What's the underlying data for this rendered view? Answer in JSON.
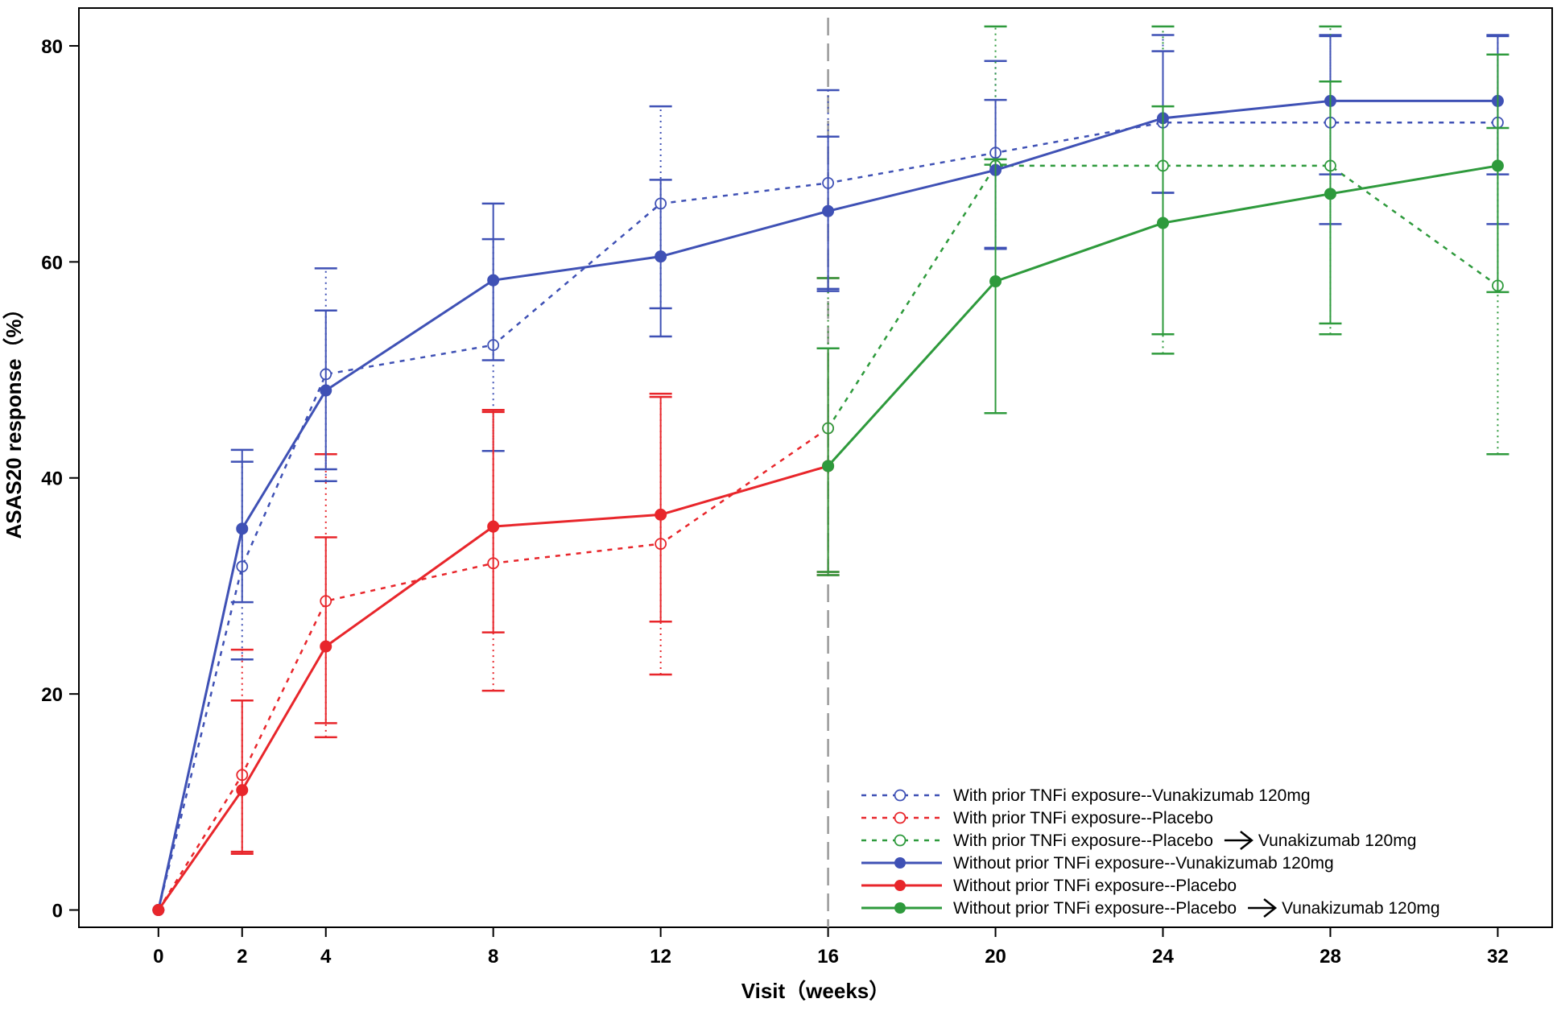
{
  "chart_data": {
    "type": "line",
    "xlabel": "Visit（weeks）",
    "ylabel": "ASAS20 response（%）",
    "xlim": [
      -1.9,
      33.3
    ],
    "ylim": [
      -1.6,
      83.5
    ],
    "x_ticks": [
      0,
      2,
      4,
      8,
      12,
      16,
      20,
      24,
      28,
      32
    ],
    "y_ticks": [
      0,
      20,
      40,
      60,
      80
    ],
    "grid": false,
    "legend_position": "bottom-right",
    "reference_line": {
      "x": 16,
      "style": "dashed",
      "color": "#999999"
    },
    "series": [
      {
        "name": "With prior TNFi exposure--Vunakizumab 120mg",
        "color": "#3f51b5",
        "line": "dashed",
        "marker": "open-circle",
        "x": [
          0,
          2,
          4,
          8,
          12,
          16,
          20,
          24,
          28,
          32
        ],
        "y": [
          0,
          31.8,
          49.6,
          52.3,
          65.4,
          67.3,
          70.1,
          72.9,
          72.9,
          72.9
        ],
        "err_low": [
          0,
          23.2,
          39.7,
          42.5,
          55.7,
          57.5,
          61.2,
          66.4,
          63.5,
          63.5
        ],
        "err_high": [
          0,
          41.5,
          59.4,
          62.1,
          74.4,
          75.9,
          78.6,
          81.0,
          81.0,
          81.0
        ]
      },
      {
        "name": "With prior TNFi exposure--Placebo",
        "color": "#e8262b",
        "line": "dashed",
        "marker": "open-circle",
        "x": [
          0,
          2,
          4,
          8,
          12,
          16
        ],
        "y": [
          0,
          12.5,
          28.6,
          32.1,
          33.9,
          44.6
        ],
        "err_low": [
          0,
          5.2,
          16.0,
          20.3,
          21.8,
          31.0
        ],
        "err_high": [
          0,
          24.1,
          42.2,
          46.3,
          47.8,
          58.5
        ]
      },
      {
        "name": "With prior TNFi exposure--Placebo",
        "name_suffix": "Vunakizumab 120mg",
        "color": "#2e9a3c",
        "line": "dashed",
        "marker": "open-circle",
        "x": [
          16,
          20,
          24,
          28,
          32
        ],
        "y": [
          44.6,
          68.9,
          68.9,
          68.9,
          57.8
        ],
        "err_low": [
          31.0,
          69.0,
          51.5,
          53.3,
          42.2
        ],
        "err_high": [
          58.5,
          81.8,
          81.8,
          81.8,
          72.4
        ]
      },
      {
        "name": "Without prior TNFi exposure--Vunakizumab 120mg",
        "color": "#3f51b5",
        "line": "solid",
        "marker": "filled-circle",
        "x": [
          0,
          2,
          4,
          8,
          12,
          16,
          20,
          24,
          28,
          32
        ],
        "y": [
          0,
          35.3,
          48.1,
          58.3,
          60.5,
          64.7,
          68.5,
          73.3,
          74.9,
          74.9
        ],
        "err_low": [
          0,
          28.5,
          40.8,
          50.9,
          53.1,
          57.3,
          61.3,
          66.4,
          68.1,
          68.1
        ],
        "err_high": [
          0,
          42.6,
          55.5,
          65.4,
          67.6,
          71.6,
          75.0,
          79.5,
          80.9,
          80.9
        ]
      },
      {
        "name": "Without prior TNFi exposure--Placebo",
        "color": "#e8262b",
        "line": "solid",
        "marker": "filled-circle",
        "x": [
          0,
          2,
          4,
          8,
          12,
          16
        ],
        "y": [
          0,
          11.1,
          24.4,
          35.5,
          36.6,
          41.1
        ],
        "err_low": [
          0,
          5.4,
          17.3,
          25.7,
          26.7,
          31.3
        ],
        "err_high": [
          0,
          19.4,
          34.5,
          46.1,
          47.5,
          52.0
        ]
      },
      {
        "name": "Without prior TNFi exposure--Placebo",
        "name_suffix": "Vunakizumab 120mg",
        "color": "#2e9a3c",
        "line": "solid",
        "marker": "filled-circle",
        "x": [
          16,
          20,
          24,
          28,
          32
        ],
        "y": [
          41.1,
          58.2,
          63.6,
          66.3,
          68.9
        ],
        "err_low": [
          31.3,
          46.0,
          53.3,
          54.3,
          57.2
        ],
        "err_high": [
          52.0,
          69.5,
          74.4,
          76.7,
          79.2
        ]
      }
    ]
  }
}
